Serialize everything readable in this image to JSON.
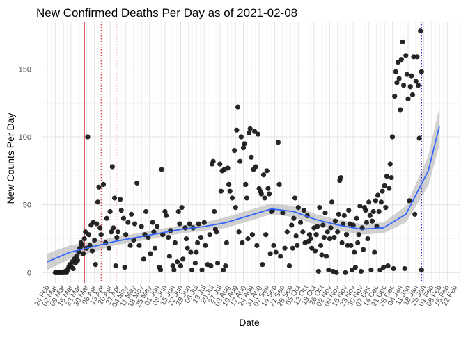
{
  "chart_data": {
    "type": "scatter",
    "title": "New Confirmed Deaths Per Day as of 2021-02-08",
    "xlabel": "Date",
    "ylabel": "New Counts Per Day",
    "ylim": [
      -8,
      185
    ],
    "yticks": [
      0,
      50,
      100,
      150
    ],
    "grid": true,
    "xticks": [
      "24 Feb",
      "02 Mar",
      "09 Mar",
      "16 Mar",
      "23 Mar",
      "30 Mar",
      "06 Apr",
      "13 Apr",
      "20 Apr",
      "27 Apr",
      "04 May",
      "11 May",
      "18 May",
      "25 May",
      "01 Jun",
      "08 Jun",
      "15 Jun",
      "22 Jun",
      "29 Jun",
      "06 Jul",
      "13 Jul",
      "20 Jul",
      "27 Jul",
      "03 Aug",
      "10 Aug",
      "17 Aug",
      "24 Aug",
      "31 Aug",
      "07 Sep",
      "14 Sep",
      "21 Sep",
      "28 Sep",
      "05 Oct",
      "12 Oct",
      "19 Oct",
      "26 Oct",
      "02 Nov",
      "09 Nov",
      "16 Nov",
      "23 Nov",
      "30 Nov",
      "07 Dec",
      "14 Dec",
      "21 Dec",
      "28 Dec",
      "04 Jan",
      "11 Jan",
      "18 Jan",
      "25 Jan",
      "01 Feb",
      "08 Feb",
      "15 Feb",
      "22 Feb"
    ],
    "x_unit": "days since 24 Feb",
    "xlim": [
      -5,
      368
    ],
    "reference_lines": [
      {
        "day": 14,
        "color": "#000000",
        "style": "solid"
      },
      {
        "day": 33,
        "color": "#cc0000",
        "style": "solid"
      },
      {
        "day": 48,
        "color": "#cc0000",
        "style": "dotted"
      },
      {
        "day": 62,
        "color": "#f4b8b8",
        "style": "dotted"
      },
      {
        "day": 334,
        "color": "#0000cc",
        "style": "dotted"
      }
    ],
    "trend": {
      "name": "smooth fit",
      "color": "#3366ff",
      "band_color": "#bdbdbd",
      "x": [
        0,
        20,
        40,
        60,
        80,
        100,
        120,
        140,
        160,
        180,
        200,
        220,
        240,
        260,
        280,
        300,
        320,
        340,
        350
      ],
      "y": [
        8,
        15,
        19,
        23,
        26,
        29,
        32,
        34,
        37,
        42,
        47,
        45,
        39,
        35,
        32,
        33,
        43,
        75,
        108
      ],
      "lower": [
        2,
        10,
        15,
        20,
        23,
        26,
        29,
        31,
        33,
        38,
        43,
        41,
        35,
        31,
        28,
        29,
        37,
        64,
        94
      ],
      "upper": [
        14,
        20,
        23,
        26,
        29,
        32,
        35,
        37,
        41,
        46,
        51,
        49,
        43,
        39,
        36,
        37,
        49,
        86,
        122
      ]
    },
    "series": [
      {
        "name": "New Counts Per Day",
        "color": "#1a1a1a",
        "points": [
          [
            7,
            0
          ],
          [
            8,
            0
          ],
          [
            9,
            0
          ],
          [
            10,
            0
          ],
          [
            11,
            0
          ],
          [
            12,
            0
          ],
          [
            13,
            0
          ],
          [
            14,
            0
          ],
          [
            15,
            0
          ],
          [
            16,
            1
          ],
          [
            17,
            0
          ],
          [
            18,
            2
          ],
          [
            19,
            4
          ],
          [
            20,
            6
          ],
          [
            21,
            5
          ],
          [
            22,
            8
          ],
          [
            23,
            3
          ],
          [
            24,
            10
          ],
          [
            25,
            7
          ],
          [
            26,
            12
          ],
          [
            27,
            9
          ],
          [
            28,
            15
          ],
          [
            29,
            18
          ],
          [
            30,
            22
          ],
          [
            31,
            20
          ],
          [
            32,
            14
          ],
          [
            33,
            25
          ],
          [
            34,
            30
          ],
          [
            35,
            18
          ],
          [
            36,
            100
          ],
          [
            37,
            28
          ],
          [
            38,
            20
          ],
          [
            39,
            35
          ],
          [
            40,
            16
          ],
          [
            41,
            37
          ],
          [
            42,
            24
          ],
          [
            43,
            6
          ],
          [
            44,
            36
          ],
          [
            45,
            52
          ],
          [
            46,
            63
          ],
          [
            47,
            33
          ],
          [
            48,
            28
          ],
          [
            50,
            65
          ],
          [
            52,
            22
          ],
          [
            53,
            40
          ],
          [
            55,
            18
          ],
          [
            56,
            45
          ],
          [
            57,
            30
          ],
          [
            58,
            78
          ],
          [
            59,
            33
          ],
          [
            60,
            55
          ],
          [
            61,
            5
          ],
          [
            62,
            26
          ],
          [
            63,
            30
          ],
          [
            65,
            54
          ],
          [
            66,
            46
          ],
          [
            68,
            40
          ],
          [
            69,
            4
          ],
          [
            70,
            28
          ],
          [
            72,
            37
          ],
          [
            74,
            20
          ],
          [
            75,
            43
          ],
          [
            77,
            24
          ],
          [
            78,
            36
          ],
          [
            80,
            66
          ],
          [
            82,
            20
          ],
          [
            84,
            34
          ],
          [
            86,
            10
          ],
          [
            87,
            28
          ],
          [
            88,
            45
          ],
          [
            90,
            26
          ],
          [
            92,
            14
          ],
          [
            94,
            37
          ],
          [
            95,
            30
          ],
          [
            96,
            18
          ],
          [
            98,
            34
          ],
          [
            100,
            4
          ],
          [
            101,
            2
          ],
          [
            102,
            76
          ],
          [
            103,
            28
          ],
          [
            105,
            45
          ],
          [
            106,
            42
          ],
          [
            108,
            26
          ],
          [
            109,
            12
          ],
          [
            110,
            31
          ],
          [
            112,
            5
          ],
          [
            113,
            2
          ],
          [
            114,
            22
          ],
          [
            116,
            8
          ],
          [
            117,
            45
          ],
          [
            118,
            36
          ],
          [
            119,
            5
          ],
          [
            120,
            48
          ],
          [
            121,
            10
          ],
          [
            123,
            33
          ],
          [
            124,
            25
          ],
          [
            125,
            18
          ],
          [
            127,
            36
          ],
          [
            128,
            15
          ],
          [
            129,
            2
          ],
          [
            130,
            33
          ],
          [
            132,
            7
          ],
          [
            133,
            15
          ],
          [
            134,
            22
          ],
          [
            135,
            36
          ],
          [
            137,
            26
          ],
          [
            138,
            2
          ],
          [
            140,
            37
          ],
          [
            141,
            20
          ],
          [
            143,
            6
          ],
          [
            145,
            28
          ],
          [
            146,
            5
          ],
          [
            147,
            80
          ],
          [
            148,
            82
          ],
          [
            149,
            45
          ],
          [
            150,
            32
          ],
          [
            151,
            30
          ],
          [
            152,
            7
          ],
          [
            154,
            80
          ],
          [
            155,
            60
          ],
          [
            156,
            75
          ],
          [
            157,
            2
          ],
          [
            158,
            76
          ],
          [
            159,
            5
          ],
          [
            160,
            22
          ],
          [
            161,
            77
          ],
          [
            162,
            65
          ],
          [
            163,
            60
          ],
          [
            165,
            55
          ],
          [
            167,
            90
          ],
          [
            168,
            48
          ],
          [
            169,
            105
          ],
          [
            170,
            122
          ],
          [
            171,
            30
          ],
          [
            172,
            82
          ],
          [
            173,
            100
          ],
          [
            174,
            22
          ],
          [
            175,
            92
          ],
          [
            176,
            95
          ],
          [
            177,
            65
          ],
          [
            178,
            55
          ],
          [
            179,
            25
          ],
          [
            180,
            103
          ],
          [
            181,
            106
          ],
          [
            182,
            85
          ],
          [
            183,
            28
          ],
          [
            184,
            76
          ],
          [
            185,
            104
          ],
          [
            186,
            78
          ],
          [
            187,
            20
          ],
          [
            188,
            102
          ],
          [
            189,
            62
          ],
          [
            190,
            60
          ],
          [
            191,
            58
          ],
          [
            192,
            6
          ],
          [
            193,
            72
          ],
          [
            194,
            55
          ],
          [
            195,
            28
          ],
          [
            196,
            75
          ],
          [
            197,
            62
          ],
          [
            198,
            58
          ],
          [
            199,
            14
          ],
          [
            200,
            45
          ],
          [
            201,
            46
          ],
          [
            202,
            20
          ],
          [
            204,
            15
          ],
          [
            206,
            96
          ],
          [
            207,
            65
          ],
          [
            208,
            12
          ],
          [
            210,
            44
          ],
          [
            212,
            18
          ],
          [
            214,
            30
          ],
          [
            216,
            5
          ],
          [
            218,
            35
          ],
          [
            219,
            18
          ],
          [
            220,
            40
          ],
          [
            221,
            55
          ],
          [
            222,
            27
          ],
          [
            223,
            20
          ],
          [
            224,
            48
          ],
          [
            226,
            37
          ],
          [
            228,
            30
          ],
          [
            229,
            46
          ],
          [
            230,
            22
          ],
          [
            232,
            42
          ],
          [
            233,
            23
          ],
          [
            234,
            28
          ],
          [
            235,
            25
          ],
          [
            236,
            18
          ],
          [
            238,
            33
          ],
          [
            239,
            16
          ],
          [
            240,
            28
          ],
          [
            241,
            34
          ],
          [
            242,
            1
          ],
          [
            243,
            48
          ],
          [
            244,
            20
          ],
          [
            245,
            13
          ],
          [
            246,
            35
          ],
          [
            247,
            26
          ],
          [
            248,
            44
          ],
          [
            249,
            12
          ],
          [
            250,
            30
          ],
          [
            251,
            2
          ],
          [
            252,
            25
          ],
          [
            253,
            33
          ],
          [
            254,
            52
          ],
          [
            255,
            1
          ],
          [
            256,
            26
          ],
          [
            257,
            38
          ],
          [
            258,
            0
          ],
          [
            259,
            30
          ],
          [
            260,
            43
          ],
          [
            261,
            68
          ],
          [
            262,
            70
          ],
          [
            263,
            22
          ],
          [
            264,
            36
          ],
          [
            265,
            42
          ],
          [
            266,
            0
          ],
          [
            267,
            28
          ],
          [
            268,
            20
          ],
          [
            269,
            46
          ],
          [
            270,
            36
          ],
          [
            271,
            20
          ],
          [
            272,
            2
          ],
          [
            273,
            35
          ],
          [
            274,
            15
          ],
          [
            275,
            4
          ],
          [
            276,
            40
          ],
          [
            277,
            22
          ],
          [
            278,
            28
          ],
          [
            279,
            49
          ],
          [
            280,
            1
          ],
          [
            281,
            33
          ],
          [
            282,
            17
          ],
          [
            283,
            48
          ],
          [
            284,
            46
          ],
          [
            285,
            37
          ],
          [
            286,
            25
          ],
          [
            287,
            52
          ],
          [
            288,
            42
          ],
          [
            289,
            2
          ],
          [
            290,
            38
          ],
          [
            291,
            45
          ],
          [
            292,
            15
          ],
          [
            293,
            53
          ],
          [
            294,
            34
          ],
          [
            295,
            57
          ],
          [
            296,
            45
          ],
          [
            297,
            2
          ],
          [
            298,
            52
          ],
          [
            299,
            60
          ],
          [
            300,
            4
          ],
          [
            301,
            64
          ],
          [
            302,
            48
          ],
          [
            303,
            71
          ],
          [
            304,
            5
          ],
          [
            305,
            62
          ],
          [
            306,
            80
          ],
          [
            307,
            70
          ],
          [
            308,
            100
          ],
          [
            309,
            3
          ],
          [
            310,
            130
          ],
          [
            311,
            148
          ],
          [
            312,
            140
          ],
          [
            313,
            155
          ],
          [
            314,
            143
          ],
          [
            315,
            120
          ],
          [
            316,
            157
          ],
          [
            317,
            170
          ],
          [
            318,
            138
          ],
          [
            319,
            3
          ],
          [
            320,
            160
          ],
          [
            321,
            146
          ],
          [
            322,
            128
          ],
          [
            323,
            53
          ],
          [
            324,
            137
          ],
          [
            325,
            145
          ],
          [
            326,
            131
          ],
          [
            327,
            159
          ],
          [
            328,
            43
          ],
          [
            329,
            141
          ],
          [
            330,
            159
          ],
          [
            331,
            138
          ],
          [
            332,
            99
          ],
          [
            333,
            178
          ],
          [
            334,
            2
          ],
          [
            334,
            148
          ]
        ]
      }
    ]
  }
}
